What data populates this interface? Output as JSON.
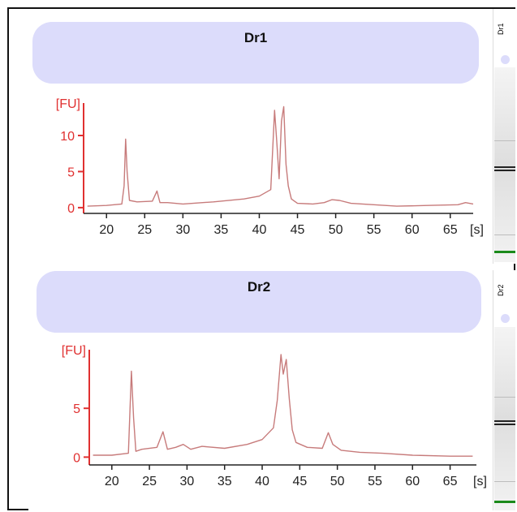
{
  "colors": {
    "axis": "#e03030",
    "trace": "#c77b7b",
    "title_bg": "#dcdcfb"
  },
  "panels": [
    {
      "title": "Dr1",
      "lane_label": "Dr1"
    },
    {
      "title": "Dr2",
      "lane_label": "Dr2"
    }
  ],
  "chart_data": [
    {
      "type": "line",
      "title": "Dr1",
      "xlabel": "[s]",
      "ylabel": "[FU]",
      "xlim": [
        17,
        68
      ],
      "ylim": [
        -0.8,
        14.5
      ],
      "xticks": [
        20,
        25,
        30,
        35,
        40,
        45,
        50,
        55,
        60,
        65
      ],
      "yticks": [
        0,
        5,
        10
      ],
      "x": [
        17.5,
        20,
        22,
        22.3,
        22.5,
        22.7,
        23,
        24,
        26,
        26.6,
        27,
        28,
        30,
        34,
        38,
        40,
        41.5,
        42,
        42.3,
        42.6,
        42.9,
        43.2,
        43.5,
        43.8,
        44.2,
        45,
        47,
        48.5,
        49.5,
        50.5,
        52,
        55,
        58,
        62,
        66,
        67,
        68
      ],
      "series": [
        {
          "values": [
            0.2,
            0.3,
            0.5,
            3,
            9.5,
            5,
            1,
            0.8,
            0.9,
            2.3,
            0.7,
            0.7,
            0.5,
            0.8,
            1.2,
            1.6,
            2.5,
            13.5,
            9,
            4,
            12,
            14,
            6,
            3,
            1.2,
            0.6,
            0.5,
            0.7,
            1.1,
            1,
            0.6,
            0.4,
            0.2,
            0.3,
            0.4,
            0.7,
            0.5
          ]
        }
      ]
    },
    {
      "type": "line",
      "title": "Dr2",
      "xlabel": "[s]",
      "ylabel": "[FU]",
      "xlim": [
        17,
        68.5
      ],
      "ylim": [
        -0.8,
        11
      ],
      "xticks": [
        20,
        25,
        30,
        35,
        40,
        45,
        50,
        55,
        60,
        65
      ],
      "yticks": [
        0,
        5
      ],
      "x": [
        17.5,
        20,
        22.2,
        22.6,
        22.9,
        23.2,
        24,
        26,
        26.8,
        27.4,
        28.5,
        29.5,
        30.5,
        32,
        35,
        38,
        40,
        41.5,
        42,
        42.5,
        42.8,
        43.2,
        43.6,
        44,
        44.5,
        46,
        48,
        48.8,
        49.4,
        50.5,
        53,
        56,
        60,
        65,
        68
      ],
      "series": [
        {
          "values": [
            0.2,
            0.2,
            0.4,
            8.8,
            4,
            0.6,
            0.8,
            1,
            2.6,
            0.8,
            1,
            1.3,
            0.8,
            1.1,
            0.9,
            1.3,
            1.8,
            3,
            5.8,
            10.5,
            8.5,
            10,
            6,
            2.8,
            1.5,
            1,
            0.9,
            2.5,
            1.3,
            0.7,
            0.5,
            0.4,
            0.2,
            0.1,
            0.1
          ]
        }
      ]
    }
  ]
}
